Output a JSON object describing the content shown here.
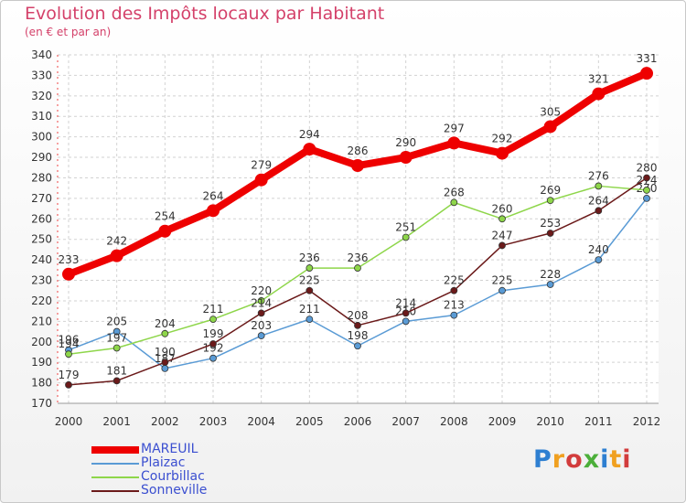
{
  "title": "Evolution des Impôts locaux par Habitant",
  "subtitle": "(en € et par an)",
  "logo": {
    "text": "Proxiti",
    "letters": [
      "P",
      "r",
      "o",
      "x",
      "i",
      "t",
      "i"
    ],
    "colors": [
      "#2e7fd1",
      "#f0a020",
      "#d23c3c",
      "#4caf3a",
      "#2e7fd1",
      "#f0a020",
      "#d23c3c"
    ]
  },
  "chart_data": {
    "type": "line",
    "title": "Evolution des Impôts locaux par Habitant",
    "subtitle": "(en € et par an)",
    "xlabel": "",
    "ylabel": "",
    "x": [
      "2000",
      "2001",
      "2002",
      "2003",
      "2004",
      "2005",
      "2006",
      "2007",
      "2008",
      "2009",
      "2010",
      "2011",
      "2012"
    ],
    "ylim": [
      170,
      340
    ],
    "yticks": [
      170,
      180,
      190,
      200,
      210,
      220,
      230,
      240,
      250,
      260,
      270,
      280,
      290,
      300,
      310,
      320,
      330,
      340
    ],
    "grid": true,
    "legend_position": "bottom-left",
    "series": [
      {
        "name": "MAREUIL",
        "color": "#ee0000",
        "thick": true,
        "values": [
          233,
          242,
          254,
          264,
          279,
          294,
          286,
          290,
          297,
          292,
          305,
          321,
          331
        ],
        "labels": [
          "233",
          "242",
          "254",
          "264",
          "279",
          "294",
          "286",
          "290",
          "297",
          "292",
          "305",
          "321",
          "331"
        ]
      },
      {
        "name": "Plaizac",
        "color": "#5a9bd5",
        "thick": false,
        "values": [
          196,
          205,
          187,
          192,
          203,
          211,
          198,
          210,
          213,
          225,
          228,
          240,
          270
        ],
        "labels": [
          "196",
          "205",
          "187",
          "192",
          "203",
          "211",
          "198",
          "210",
          "213",
          "225",
          "228",
          "240",
          "270"
        ]
      },
      {
        "name": "Courbillac",
        "color": "#8ed64a",
        "thick": false,
        "values": [
          194,
          197,
          204,
          211,
          220,
          236,
          236,
          251,
          268,
          260,
          269,
          276,
          274
        ],
        "labels": [
          "194",
          "197",
          "204",
          "211",
          "220",
          "236",
          "236",
          "251",
          "268",
          "260",
          "269",
          "276",
          "274"
        ]
      },
      {
        "name": "Sonneville",
        "color": "#6b1a1a",
        "thick": false,
        "values": [
          179,
          181,
          190,
          199,
          214,
          225,
          208,
          214,
          225,
          247,
          253,
          264,
          280
        ],
        "labels": [
          "179",
          "181",
          "190",
          "199",
          "214",
          "225",
          "208",
          "214",
          "225",
          "247",
          "253",
          "264",
          "280"
        ]
      }
    ]
  }
}
